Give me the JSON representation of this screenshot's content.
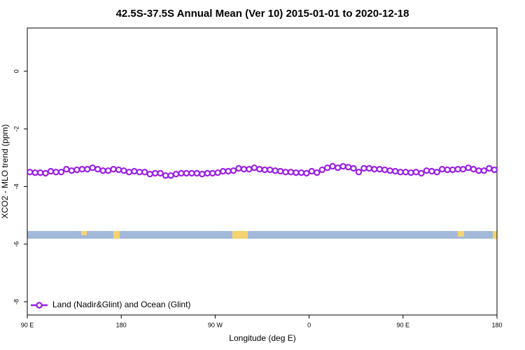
{
  "chart_data": {
    "type": "line",
    "title": "42.5S-37.5S Annual Mean (Ver 10)   2015-01-01 to 2020-12-18",
    "x_label": "Longitude (deg E)",
    "y_label": "XCO2 - MLO trend (ppm)",
    "xlim": [
      90,
      540
    ],
    "ylim": [
      -8.46,
      1.5
    ],
    "xticks": [
      {
        "value": 90,
        "label": "90 E"
      },
      180,
      {
        "value": 270,
        "label": "90 W"
      },
      {
        "value": 360,
        "label": "0"
      },
      {
        "value": 450,
        "label": "90 E"
      },
      {
        "value": 540,
        "label": "180"
      }
    ],
    "yticks": [
      0,
      -2,
      -4,
      -6,
      -8
    ],
    "legend": "bottom-left",
    "x": [
      92.5,
      97.5,
      102.5,
      107.5,
      112.5,
      117.5,
      122.5,
      127.5,
      132.5,
      137.5,
      142.5,
      147.5,
      152.5,
      157.5,
      162.5,
      167.5,
      172.5,
      177.5,
      182.5,
      187.5,
      192.5,
      197.5,
      202.5,
      207.5,
      212.5,
      217.5,
      222.5,
      227.5,
      232.5,
      237.5,
      242.5,
      247.5,
      252.5,
      257.5,
      262.5,
      267.5,
      272.5,
      277.5,
      282.5,
      287.5,
      292.5,
      297.5,
      302.5,
      307.5,
      312.5,
      317.5,
      322.5,
      327.5,
      332.5,
      337.5,
      342.5,
      347.5,
      352.5,
      357.5,
      362.5,
      367.5,
      372.5,
      377.5,
      382.5,
      387.5,
      392.5,
      397.5,
      402.5,
      407.5,
      412.5,
      417.5,
      422.5,
      427.5,
      432.5,
      437.5,
      442.5,
      447.5,
      452.5,
      457.5,
      462.5,
      467.5,
      472.5,
      477.5,
      482.5,
      487.5,
      492.5,
      497.5,
      502.5,
      507.5,
      512.5,
      517.5,
      522.5,
      527.5,
      532.5,
      537.5
    ],
    "series": [
      {
        "name": "Land (Nadir&Glint) and Ocean (Glint)",
        "color": "#9b1fe8",
        "values": [
          -3.5,
          -3.52,
          -3.52,
          -3.54,
          -3.47,
          -3.5,
          -3.5,
          -3.4,
          -3.45,
          -3.42,
          -3.4,
          -3.4,
          -3.35,
          -3.4,
          -3.45,
          -3.45,
          -3.4,
          -3.42,
          -3.45,
          -3.5,
          -3.47,
          -3.5,
          -3.5,
          -3.57,
          -3.54,
          -3.54,
          -3.62,
          -3.62,
          -3.57,
          -3.54,
          -3.54,
          -3.54,
          -3.54,
          -3.57,
          -3.54,
          -3.54,
          -3.52,
          -3.47,
          -3.47,
          -3.45,
          -3.37,
          -3.4,
          -3.4,
          -3.35,
          -3.4,
          -3.42,
          -3.42,
          -3.45,
          -3.47,
          -3.5,
          -3.5,
          -3.52,
          -3.52,
          -3.54,
          -3.47,
          -3.52,
          -3.42,
          -3.35,
          -3.3,
          -3.35,
          -3.3,
          -3.33,
          -3.37,
          -3.5,
          -3.37,
          -3.37,
          -3.4,
          -3.4,
          -3.42,
          -3.45,
          -3.47,
          -3.5,
          -3.5,
          -3.52,
          -3.5,
          -3.54,
          -3.45,
          -3.47,
          -3.5,
          -3.4,
          -3.42,
          -3.42,
          -3.4,
          -3.4,
          -3.35,
          -3.4,
          -3.45,
          -3.45,
          -3.37,
          -3.42
        ]
      }
    ]
  }
}
